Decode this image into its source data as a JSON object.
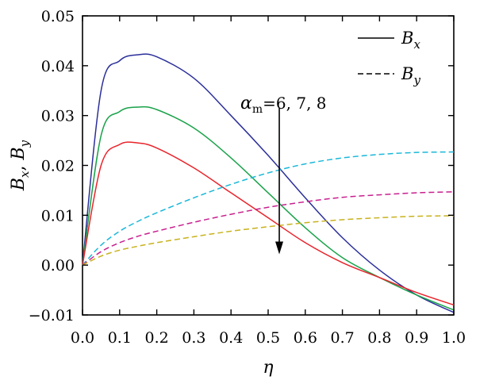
{
  "chart_data": {
    "type": "line",
    "xlabel": "η",
    "ylabel": "Bx, By",
    "ylabel_parts": [
      "B",
      "x",
      ", ",
      "B",
      "y"
    ],
    "xlim": [
      0.0,
      1.0
    ],
    "ylim": [
      -0.01,
      0.05
    ],
    "x_ticks": [
      "0.0",
      "0.1",
      "0.2",
      "0.3",
      "0.4",
      "0.5",
      "0.6",
      "0.7",
      "0.8",
      "0.9",
      "1.0"
    ],
    "y_ticks": [
      "−0.01",
      "0.00",
      "0.01",
      "0.02",
      "0.03",
      "0.04",
      "0.05"
    ],
    "legend": {
      "placement": "top-right",
      "entries": [
        {
          "label": "Bx",
          "base": "B",
          "sub": "x",
          "style": "solid"
        },
        {
          "label": "By",
          "base": "B",
          "sub": "y",
          "style": "dashed"
        }
      ]
    },
    "annotation": {
      "text": "αm=6, 7, 8",
      "greek": "α",
      "sub": "m",
      "rest": "=6, 7, 8"
    },
    "x": [
      0,
      0.05,
      0.1,
      0.15,
      0.2,
      0.3,
      0.4,
      0.5,
      0.6,
      0.7,
      0.8,
      0.9,
      1.0
    ],
    "series": [
      {
        "style": "solid",
        "color": "#2b2f9a",
        "values": [
          0.0,
          0.035,
          0.041,
          0.0422,
          0.0418,
          0.0375,
          0.03,
          0.022,
          0.0135,
          0.0055,
          -0.001,
          -0.006,
          -0.0095
        ]
      },
      {
        "style": "solid",
        "color": "#1aa34a",
        "values": [
          0.0,
          0.026,
          0.0308,
          0.0317,
          0.0312,
          0.0275,
          0.0215,
          0.0145,
          0.0075,
          0.0015,
          -0.0025,
          -0.006,
          -0.009
        ]
      },
      {
        "style": "solid",
        "color": "#e8242b",
        "values": [
          0.0,
          0.02,
          0.0242,
          0.0245,
          0.0235,
          0.0195,
          0.0145,
          0.0095,
          0.0045,
          0.0005,
          -0.0025,
          -0.0055,
          -0.008
        ]
      },
      {
        "style": "dashed",
        "color": "#1ab8d8",
        "values": [
          0.0,
          0.004,
          0.0068,
          0.0088,
          0.0105,
          0.0135,
          0.0162,
          0.0185,
          0.0203,
          0.0215,
          0.0222,
          0.0226,
          0.0227
        ]
      },
      {
        "style": "dashed",
        "color": "#c8208f",
        "values": [
          0.0,
          0.0027,
          0.0045,
          0.0058,
          0.0068,
          0.0086,
          0.0102,
          0.0116,
          0.0127,
          0.0136,
          0.0141,
          0.0145,
          0.0147
        ]
      },
      {
        "style": "dashed",
        "color": "#c8b21e",
        "values": [
          0.0,
          0.0018,
          0.003,
          0.0038,
          0.0045,
          0.0057,
          0.0068,
          0.0077,
          0.0085,
          0.0091,
          0.0095,
          0.0098,
          0.0099
        ]
      }
    ],
    "arrow": {
      "x": 0.53,
      "y_from": 0.0315,
      "y_to": 0.0025
    },
    "grid": false
  }
}
